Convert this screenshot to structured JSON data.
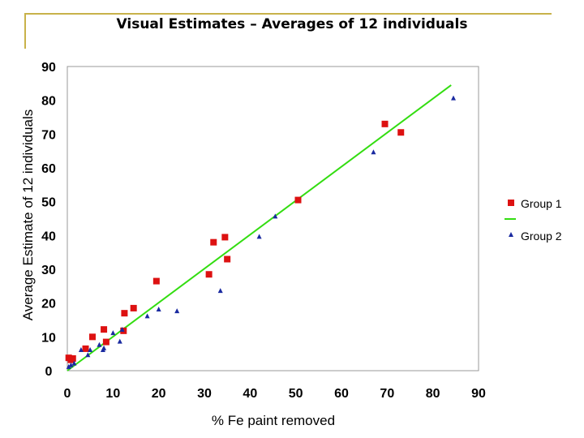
{
  "chart_data": {
    "type": "scatter",
    "title": "Visual Estimates – Averages of 12 individuals",
    "xlabel": "% Fe paint removed",
    "ylabel": "Average Estimate of 12 individuals",
    "xlim": [
      0,
      90
    ],
    "ylim": [
      0,
      90
    ],
    "xticks": [
      0,
      10,
      20,
      30,
      40,
      50,
      60,
      70,
      80,
      90
    ],
    "yticks": [
      0,
      10,
      20,
      30,
      40,
      50,
      60,
      70,
      80,
      90
    ],
    "grid": false,
    "legend_position": "right",
    "series": [
      {
        "name": "Group 1",
        "marker": "square",
        "color": "#dd1111",
        "points": [
          [
            0.3,
            3.8
          ],
          [
            0.8,
            3.2
          ],
          [
            1.2,
            3.6
          ],
          [
            4,
            6.5
          ],
          [
            5.5,
            10
          ],
          [
            8,
            12.2
          ],
          [
            8.5,
            8.5
          ],
          [
            12.5,
            17
          ],
          [
            12.3,
            11.8
          ],
          [
            14.5,
            18.5
          ],
          [
            19.5,
            26.5
          ],
          [
            31,
            28.5
          ],
          [
            32,
            38
          ],
          [
            34.5,
            39.5
          ],
          [
            35,
            33
          ],
          [
            50.5,
            50.5
          ],
          [
            69.5,
            73
          ],
          [
            73,
            70.5
          ]
        ]
      },
      {
        "name": "",
        "marker": "line",
        "color": "#33dd11",
        "points": [
          [
            0,
            0
          ],
          [
            84,
            84.5
          ]
        ]
      },
      {
        "name": "Group 2",
        "marker": "triangle",
        "color": "#1a2aa0",
        "points": [
          [
            0.3,
            1
          ],
          [
            0.8,
            1.5
          ],
          [
            1.5,
            2
          ],
          [
            3,
            6
          ],
          [
            4.5,
            4.5
          ],
          [
            5,
            6
          ],
          [
            7,
            7.5
          ],
          [
            7.8,
            6
          ],
          [
            8,
            6.5
          ],
          [
            10,
            11
          ],
          [
            11.5,
            8.5
          ],
          [
            12,
            12
          ],
          [
            17.5,
            16
          ],
          [
            20,
            18
          ],
          [
            24,
            17.5
          ],
          [
            33.5,
            23.5
          ],
          [
            42,
            39.5
          ],
          [
            45.5,
            45.5
          ],
          [
            67,
            64.5
          ],
          [
            84.5,
            80.5
          ]
        ]
      }
    ]
  }
}
